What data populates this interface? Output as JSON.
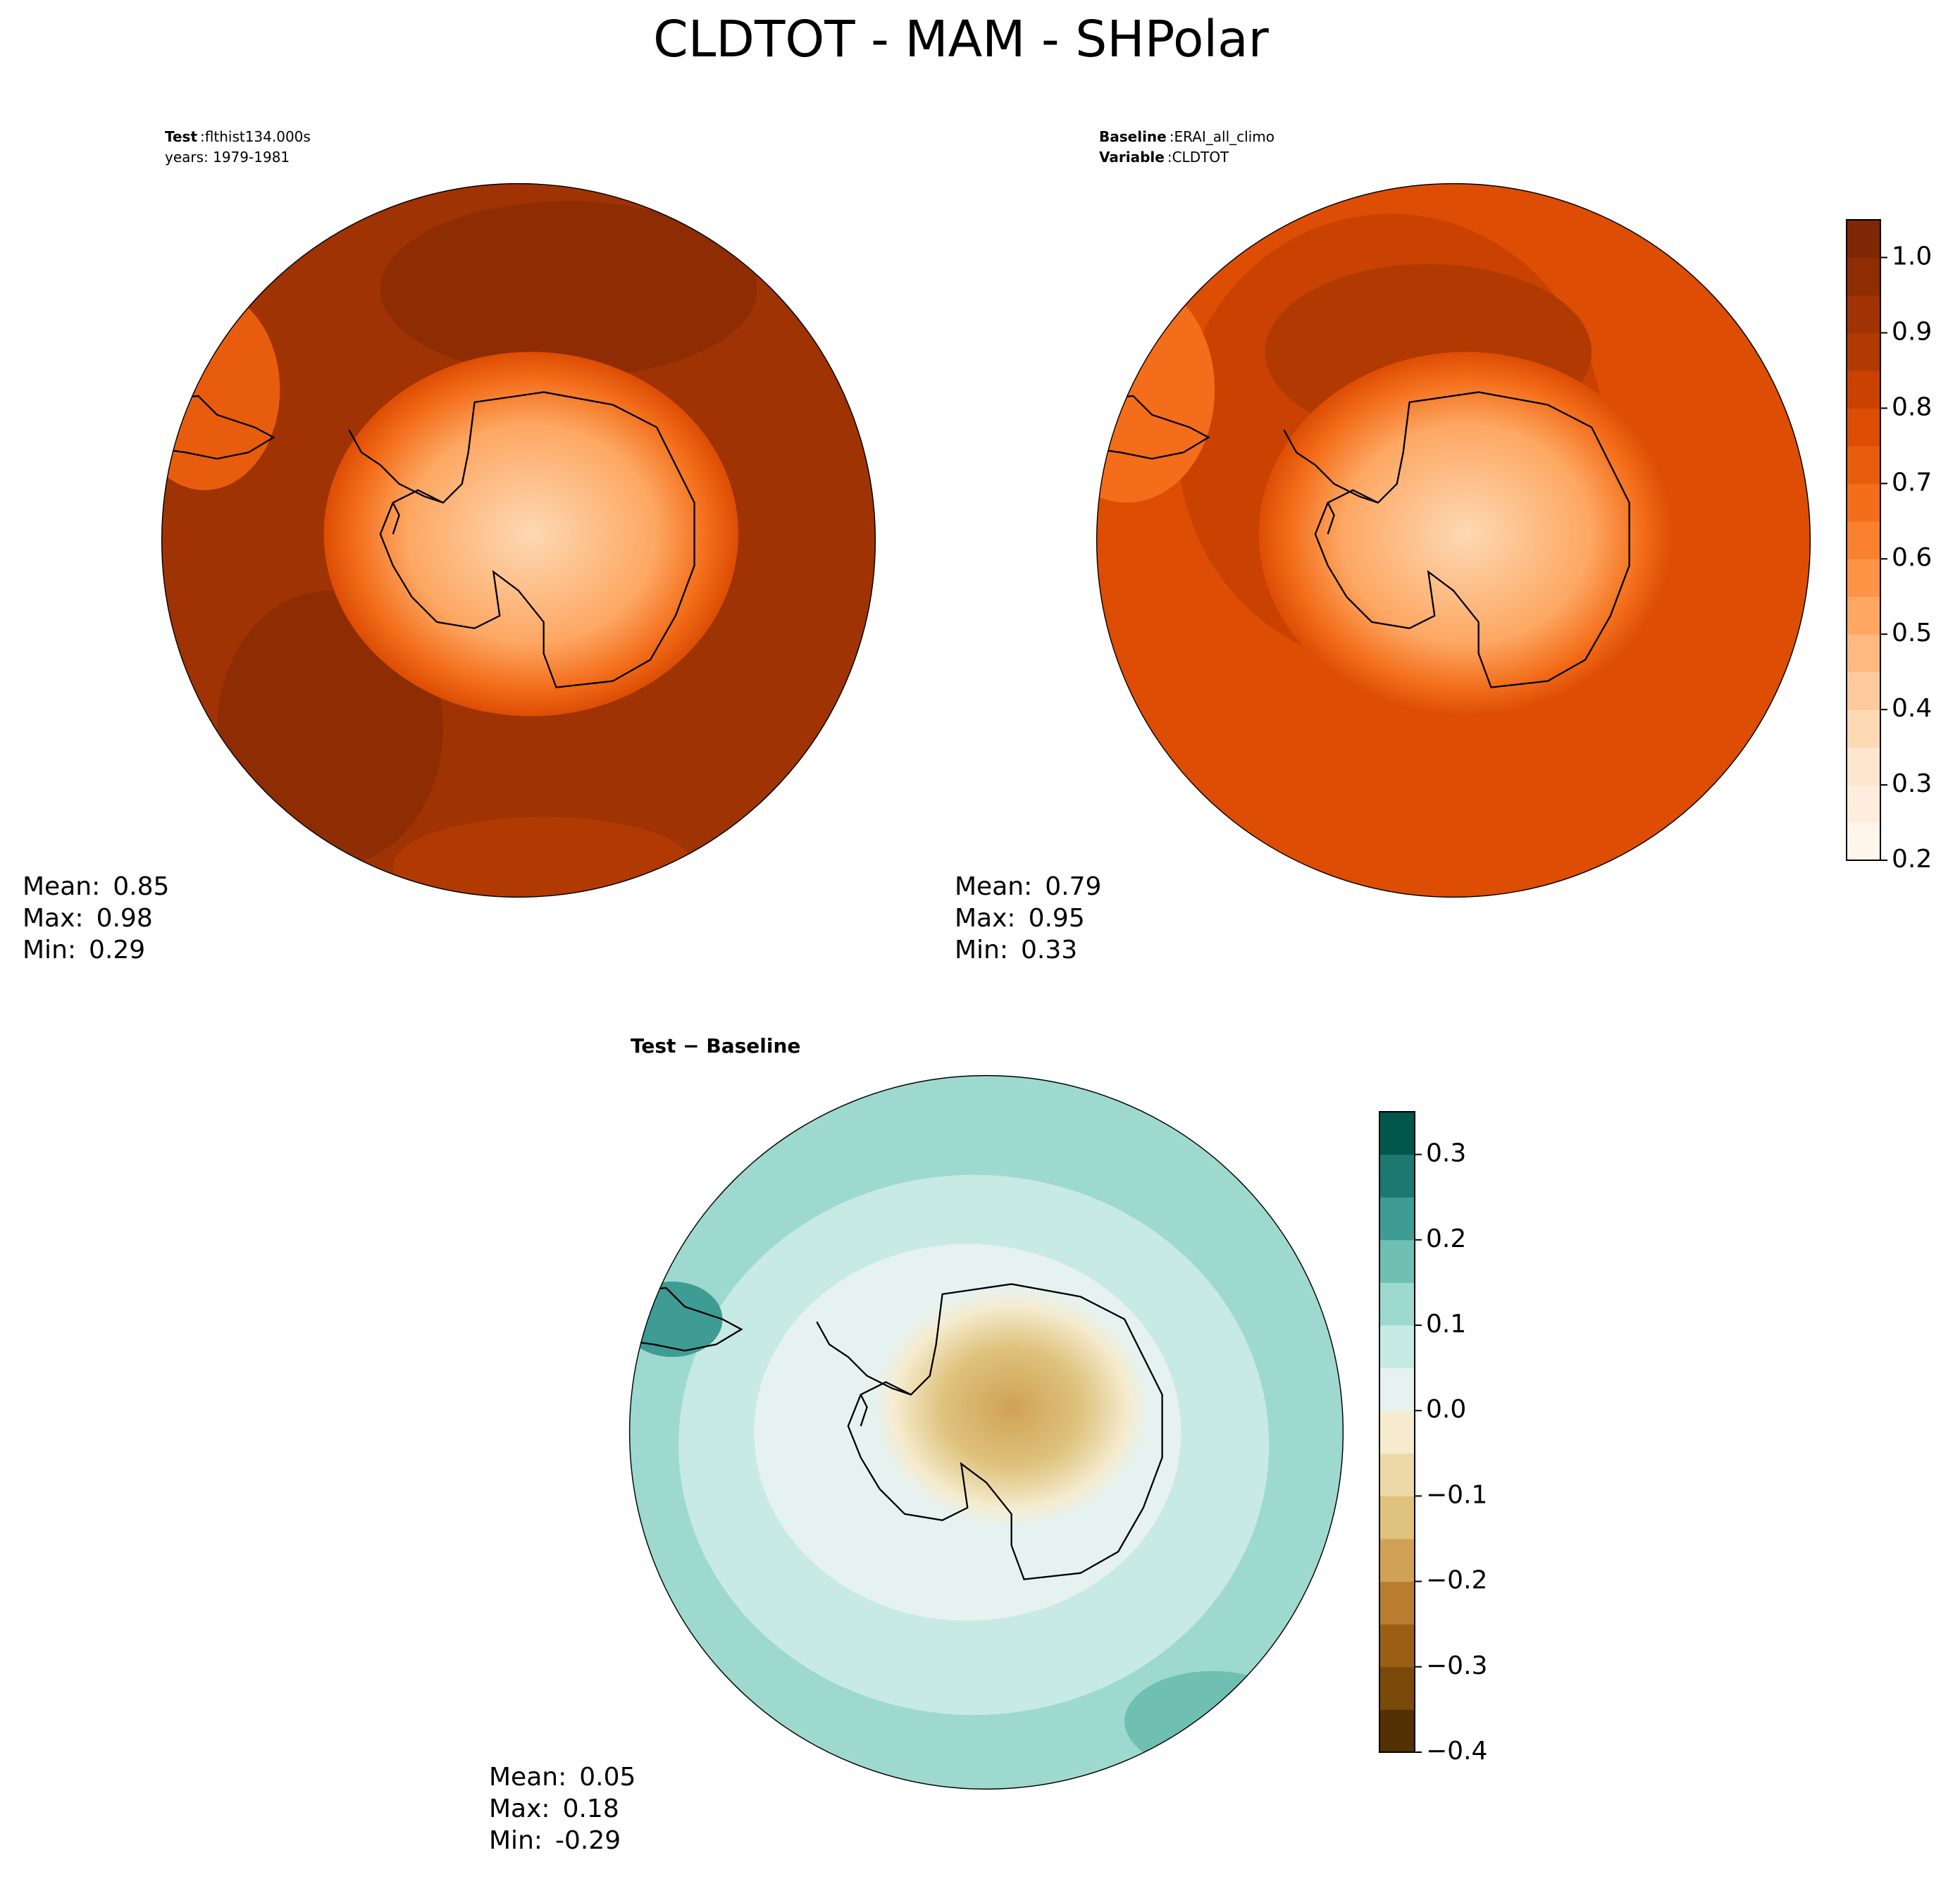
{
  "title": "CLDTOT - MAM - SHPolar",
  "panels": [
    {
      "header": [
        {
          "key": "Test",
          "sep": ":",
          "value": "flthist134.000s"
        },
        {
          "text": "years: 1979-1981"
        }
      ],
      "stats": [
        {
          "label": "Mean:",
          "value": 0.85
        },
        {
          "label": "Max:",
          "value": 0.98
        },
        {
          "label": "Min:",
          "value": 0.29
        }
      ]
    },
    {
      "header": [
        {
          "key": "Baseline",
          "sep": ":",
          "value": "ERAI_all_climo"
        },
        {
          "key": "Variable",
          "sep": ":",
          "value": "CLDTOT"
        }
      ],
      "stats": [
        {
          "label": "Mean:",
          "value": 0.79
        },
        {
          "label": "Max:",
          "value": 0.95
        },
        {
          "label": "Min:",
          "value": 0.33
        }
      ]
    },
    {
      "header": [
        {
          "title": "Test − Baseline"
        }
      ],
      "stats": [
        {
          "label": "Mean:",
          "value": 0.05
        },
        {
          "label": "Max:",
          "value": 0.18
        },
        {
          "label": "Min:",
          "value": -0.29
        }
      ]
    }
  ],
  "colorbars": [
    {
      "lim": [
        0.2,
        1.05
      ],
      "ticks": [
        0.2,
        0.3,
        0.4,
        0.5,
        0.6,
        0.7,
        0.8,
        0.9,
        {
          "value": 1,
          "label": "1.0"
        }
      ],
      "colors": [
        "#fff5eb",
        "#feeddc",
        "#fee6ce",
        "#fdd9b4",
        "#fdcb9b",
        "#fdb97f",
        "#fda762",
        "#fd9446",
        "#f9802d",
        "#f36d1a",
        "#e85d0d",
        "#dd4d04",
        "#c94202",
        "#b13a03",
        "#a03303",
        "#8e2d04",
        "#7f2704"
      ]
    },
    {
      "lim": [
        -0.4,
        0.35
      ],
      "ticks": [
        {
          "value": -0.4,
          "label": "−0.4"
        },
        {
          "value": -0.3,
          "label": "−0.3"
        },
        {
          "value": -0.2,
          "label": "−0.2"
        },
        {
          "value": -0.1,
          "label": "−0.1"
        },
        {
          "value": 0,
          "label": "0.0"
        },
        0.1,
        0.2,
        0.3
      ],
      "colors": [
        "#543005",
        "#7a4a0b",
        "#9a5f14",
        "#b87d2f",
        "#cfa256",
        "#dfc27d",
        "#ecd9a7",
        "#f5ecd0",
        "#e6f2ef",
        "#c7eae5",
        "#9dd9cf",
        "#6fbfb3",
        "#3f9c94",
        "#1c7870",
        "#01574a"
      ]
    }
  ]
}
